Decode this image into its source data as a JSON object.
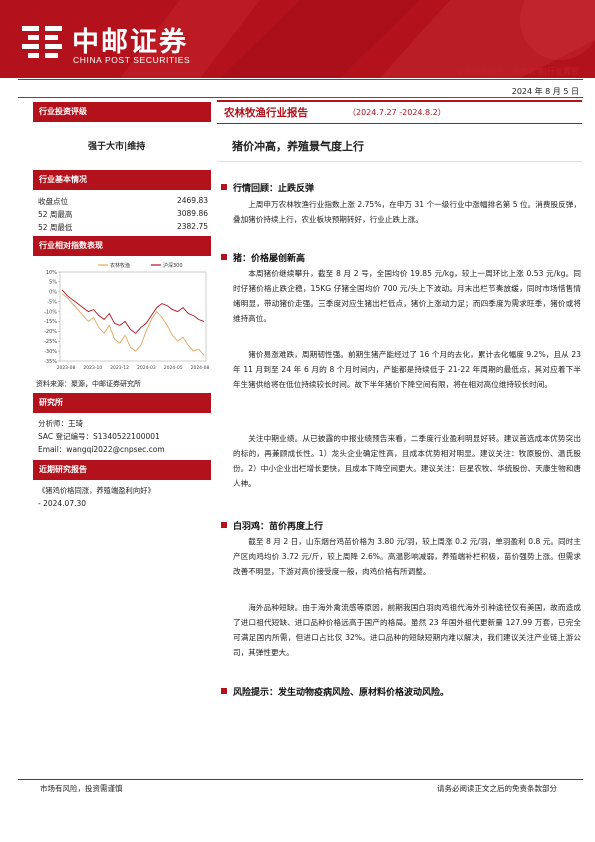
{
  "brand": {
    "name_cn": "中邮证券",
    "name_en": "CHINA POST SECURITIES"
  },
  "header": {
    "report_type": "证券研究报告：农林牧渔|行业周报",
    "date": "2024 年 8 月 5 日"
  },
  "sidebar": {
    "rating_head": "行业投资评级",
    "rating": "强于大市|维持",
    "basics_head": "行业基本情况",
    "basics": [
      {
        "label": "收盘点位",
        "value": "2469.83"
      },
      {
        "label": "52 周最高",
        "value": "3089.86"
      },
      {
        "label": "52 周最低",
        "value": "2382.75"
      }
    ],
    "chart_head": "行业相对指数表现",
    "source": "资料来源：聚源，中邮证券研究所",
    "analyst_head": "研究所",
    "analyst": [
      "分析师：王琦",
      "SAC 登记编号：S1340522100001",
      "Email：wangqi2022@cnpsec.com"
    ],
    "recent_head": "近期研究报告",
    "recent": [
      "《猪鸡价格同涨，养殖端盈利向好》",
      "- 2024.07.30"
    ]
  },
  "chart_data": {
    "type": "line",
    "x_ticks": [
      "2023-08",
      "2023-10",
      "2023-12",
      "2024-03",
      "2024-05",
      "2024-08"
    ],
    "y_ticks": [
      "10%",
      "5%",
      "0%",
      "-5%",
      "-10%",
      "-15%",
      "-20%",
      "-25%",
      "-30%",
      "-35%"
    ],
    "ylim": [
      -35,
      10
    ],
    "colors": {
      "农林牧渔": "#e3a65c",
      "沪深300": "#b3121c"
    },
    "series": [
      {
        "name": "农林牧渔",
        "values": [
          -1,
          -3,
          -6,
          -9,
          -12,
          -15,
          -13,
          -18,
          -21,
          -17,
          -24,
          -26,
          -22,
          -28,
          -30,
          -27,
          -20,
          -14,
          -10,
          -13,
          -17,
          -22,
          -25,
          -23,
          -27,
          -30,
          -29,
          -32
        ]
      },
      {
        "name": "沪深300",
        "values": [
          1,
          -2,
          -4,
          -6,
          -8,
          -10,
          -9,
          -12,
          -14,
          -11,
          -16,
          -17,
          -15,
          -19,
          -21,
          -18,
          -16,
          -12,
          -8,
          -6,
          -7,
          -9,
          -10,
          -8,
          -11,
          -12,
          -14,
          -15
        ]
      }
    ]
  },
  "main": {
    "title": "农林牧渔行业报告",
    "range": "（2024.7.27 -2024.8.2）",
    "subtitle": "猪价冲高，养殖景气度上行",
    "sections": [
      {
        "head": "行情回顾：止跌反弹",
        "paras": [
          "上周申万农林牧渔行业指数上涨 2.75%，在申万 31 个一级行业中涨幅排名第 5 位。消费股反弹，叠加猪价持续上行，农业板块预期转好，行业止跌上涨。"
        ]
      },
      {
        "head": "猪：价格屡创新高",
        "paras": [
          "本周猪价继续攀升，截至 8 月 2 号，全国均价 19.85 元/kg，较上一周环比上涨 0.53 元/kg。同时仔猪价格止跌企稳，15KG 仔猪全国均价 700 元/头上下波动。月末出栏节奏放缓，同时市场惜售情绪明显，带动猪价走强。三季度对应生猪出栏低点，猪价上涨动力足；而四季度为需求旺季，猪价或将维持高位。",
          "猪价易涨难跌，周期韧性强。前期生猪产能经过了 16 个月的去化，累计去化幅度 9.2%，且从 23 年 11 月到至 24 年 6 月的 8 个月时间内，产能都是持续低于 21-22 年周期的最低点，其对应着下半年生猪供给将在低位持续较长时间。故下半年猪价下降空间有限，将在相对高位维持较长时间。",
          "关注中期业绩。从已披露的中报业绩预告来看，二季度行业盈利明显好转。建议首选成本优势突出的标的，再兼顾成长性。1）龙头企业确定性高，且成本优势相对明显。建议关注：牧原股份、温氏股份。2）中小企业出栏增长更快，且成本下降空间更大。建议关注：巨星农牧、华统股份、天康生物和唐人神。"
        ]
      },
      {
        "head": "白羽鸡：苗价再度上行",
        "paras": [
          "截至 8 月 2 日，山东烟台鸡苗价格为 3.80 元/羽，较上周涨 0.2 元/羽，单羽盈利 0.8 元。同时主产区肉鸡均价 3.72 元/斤，较上周降 2.6%。高温影响减弱，养殖端补栏积极，苗价强势上涨。但需求改善不明显，下游对高价接受度一般，肉鸡价格有所调整。",
          "海外品种短缺。由于海外禽流感等原因，前期我国白羽肉鸡祖代海外引种途径仅有美国，故而造成了进口祖代短缺、进口品种价格远高于国产的格局。虽然 23 年国外祖代更新量 127.99 万套，已完全可满足国内所需，但进口占比仅 32%。进口品种的短缺短期内难以解决，我们建议关注产业链上游公司，其弹性更大。"
        ]
      }
    ],
    "risk": "风险提示：发生动物疫病风险、原材料价格波动风险。"
  },
  "footer": {
    "left": "市场有风险，投资需谨慎",
    "right": "请务必阅读正文之后的免责条款部分"
  }
}
